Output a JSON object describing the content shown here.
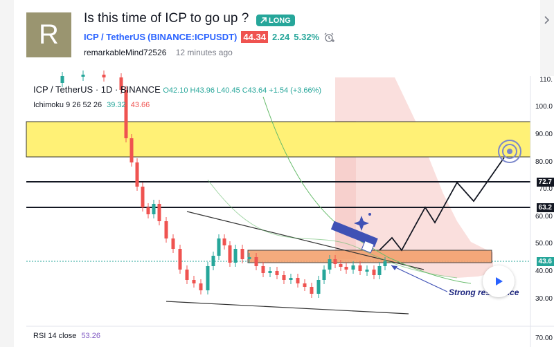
{
  "header": {
    "avatar_letter": "R",
    "title": "Is this time of ICP to go up ?",
    "badge": {
      "label": "LONG",
      "color": "#26a69a"
    },
    "symbol": "ICP / TetherUS",
    "exchange": "(BINANCE:ICPUSDT)",
    "price": "44.34",
    "change": "2.24",
    "change_pct": "5.32%",
    "author": "remarkableMind72526",
    "time": "12 minutes ago"
  },
  "chart": {
    "legend_symbol": "ICP / TetherUS · 1D · BINANCE",
    "ohlc": "O42.10 H43.96 L40.45 C43.64 +1.54 (+3.66%)",
    "ichimoku_label": "Ichimoku 9 26 52 26",
    "ichimoku_val1": "39.32",
    "ichimoku_val2": "43.66",
    "rsi_label": "RSI 14 close",
    "rsi_value": "53.26",
    "axis_ticks": [
      "110.",
      "100.0",
      "90.00",
      "80.00",
      "72.7",
      "70.0",
      "63.2",
      "60.00",
      "50.00",
      "43.6",
      "40.00",
      "30.00",
      "70.00"
    ],
    "price_tags": {
      "level1": "72.7",
      "level2": "63.2",
      "current": "43.6"
    },
    "annotation": "Strong resistance",
    "colors": {
      "up": "#26a69a",
      "down": "#ef5350",
      "zone": "#fff176",
      "resistance": "#f4a26f",
      "cloud": "#f5c6c3"
    }
  }
}
